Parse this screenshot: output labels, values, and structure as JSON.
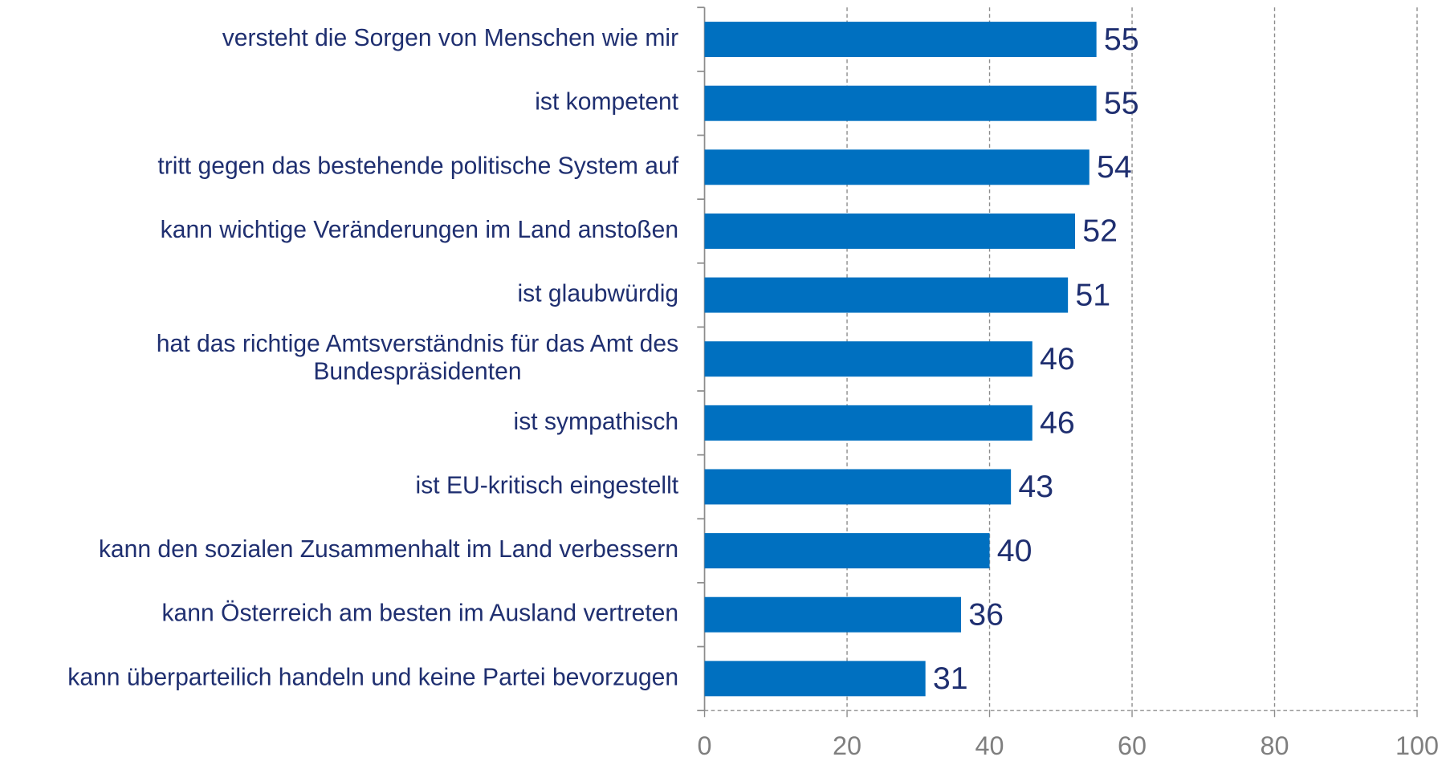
{
  "chart_data": {
    "type": "barh",
    "categories": [
      "versteht die Sorgen von Menschen wie mir",
      "ist kompetent",
      "tritt gegen das bestehende politische System auf",
      "kann wichtige Veränderungen im Land anstoßen",
      "ist glaubwürdig",
      "hat das richtige Amtsverständnis für das Amt des Bundespräsidenten",
      "ist sympathisch",
      "ist EU-kritisch eingestellt",
      "kann den sozialen Zusammenhalt im Land verbessern",
      "kann Österreich am besten im Ausland vertreten",
      "kann überparteilich handeln und keine Partei bevorzugen"
    ],
    "values": [
      55,
      55,
      54,
      52,
      51,
      46,
      46,
      43,
      40,
      36,
      31
    ],
    "color": "#0070c0",
    "xlim": [
      0,
      100
    ],
    "xticks": [
      0,
      20,
      40,
      60,
      80,
      100
    ],
    "grid": true
  }
}
